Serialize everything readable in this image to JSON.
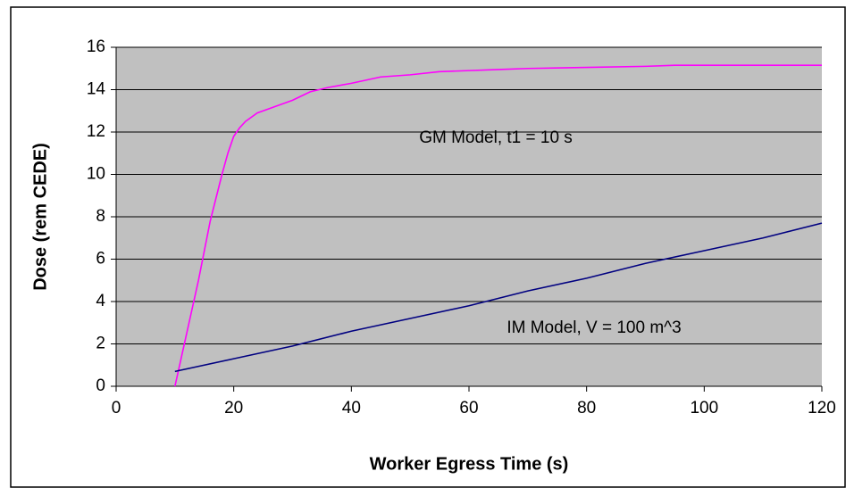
{
  "chart_data": {
    "type": "line",
    "x_label": "Worker Egress Time (s)",
    "y_label": "Dose (rem CEDE)",
    "xlim": [
      0,
      120
    ],
    "xticks": [
      0,
      20,
      40,
      60,
      80,
      100,
      120
    ],
    "ylim": [
      0,
      16
    ],
    "yticks": [
      0,
      2,
      4,
      6,
      8,
      10,
      12,
      14,
      16
    ],
    "grid": true,
    "series": [
      {
        "name": "GM Model, t1 = 10 s",
        "color": "#ff00ff",
        "x": [
          10,
          12,
          14,
          16,
          18,
          19,
          20,
          21,
          22,
          24,
          26,
          28,
          30,
          33,
          36,
          40,
          45,
          50,
          55,
          60,
          65,
          70,
          80,
          90,
          95,
          100,
          120
        ],
        "values": [
          0,
          2.5,
          5,
          7.8,
          10,
          11,
          11.8,
          12.2,
          12.5,
          12.9,
          13.1,
          13.3,
          13.5,
          13.9,
          14.1,
          14.3,
          14.6,
          14.7,
          14.85,
          14.9,
          14.95,
          15.0,
          15.05,
          15.1,
          15.15,
          15.15,
          15.15
        ]
      },
      {
        "name": "IM Model, V = 100 m^3",
        "color": "#000080",
        "x": [
          10,
          20,
          30,
          40,
          50,
          60,
          70,
          80,
          90,
          100,
          110,
          120
        ],
        "values": [
          0.7,
          1.3,
          1.9,
          2.6,
          3.2,
          3.8,
          4.5,
          5.1,
          5.8,
          6.4,
          7.0,
          7.7
        ]
      }
    ]
  }
}
